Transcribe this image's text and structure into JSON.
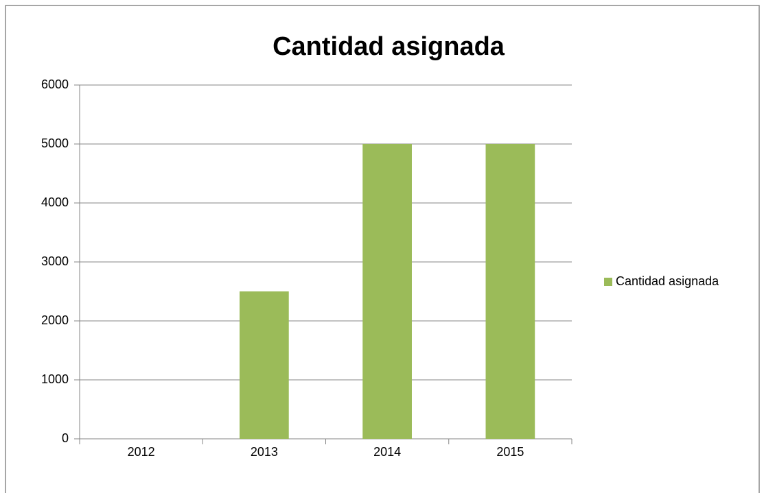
{
  "chart_data": {
    "type": "bar",
    "title": "Cantidad asignada",
    "categories": [
      "2012",
      "2013",
      "2014",
      "2015"
    ],
    "series": [
      {
        "name": "Cantidad asignada",
        "color": "#9bbb59",
        "values": [
          0,
          2500,
          5000,
          5000
        ]
      }
    ],
    "ylim": [
      0,
      6000
    ],
    "yticks": [
      0,
      1000,
      2000,
      3000,
      4000,
      5000,
      6000
    ],
    "grid": true,
    "legend": "right"
  }
}
